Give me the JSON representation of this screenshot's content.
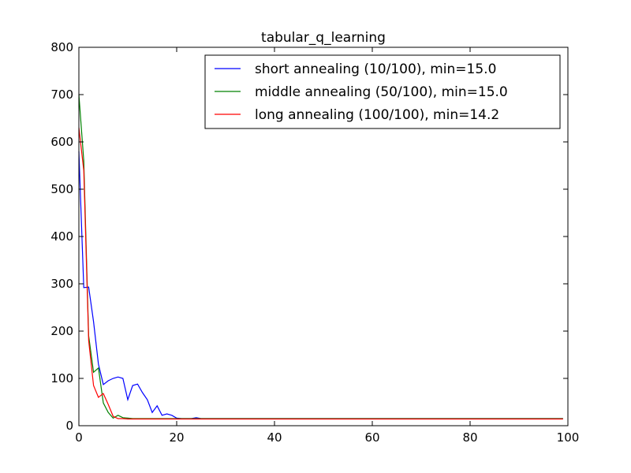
{
  "chart_data": {
    "type": "line",
    "title": "tabular_q_learning",
    "xlabel": "",
    "ylabel": "",
    "xlim": [
      0,
      100
    ],
    "ylim": [
      0,
      800
    ],
    "xticks": [
      0,
      20,
      40,
      60,
      80,
      100
    ],
    "yticks": [
      0,
      100,
      200,
      300,
      400,
      500,
      600,
      700,
      800
    ],
    "grid": false,
    "legend_position": "top-right",
    "series": [
      {
        "name": "short annealing (10/100), min=15.0",
        "color": "#0000ff",
        "points": [
          [
            0,
            580
          ],
          [
            1,
            292
          ],
          [
            2,
            293
          ],
          [
            3,
            220
          ],
          [
            4,
            130
          ],
          [
            5,
            87
          ],
          [
            6,
            95
          ],
          [
            7,
            100
          ],
          [
            8,
            103
          ],
          [
            9,
            100
          ],
          [
            10,
            55
          ],
          [
            11,
            85
          ],
          [
            12,
            88
          ],
          [
            13,
            70
          ],
          [
            14,
            55
          ],
          [
            15,
            28
          ],
          [
            16,
            42
          ],
          [
            17,
            22
          ],
          [
            18,
            25
          ],
          [
            19,
            22
          ],
          [
            20,
            16
          ],
          [
            21,
            15
          ],
          [
            22,
            15
          ],
          [
            23,
            15
          ],
          [
            24,
            17
          ],
          [
            25,
            15
          ],
          [
            30,
            15
          ],
          [
            40,
            15
          ],
          [
            50,
            15
          ],
          [
            60,
            15
          ],
          [
            70,
            15
          ],
          [
            80,
            15
          ],
          [
            90,
            15
          ],
          [
            99,
            15
          ]
        ]
      },
      {
        "name": "middle annealing (50/100), min=15.0",
        "color": "#008000",
        "points": [
          [
            0,
            700
          ],
          [
            1,
            560
          ],
          [
            2,
            190
          ],
          [
            3,
            113
          ],
          [
            4,
            122
          ],
          [
            5,
            48
          ],
          [
            6,
            28
          ],
          [
            7,
            16
          ],
          [
            8,
            22
          ],
          [
            9,
            17
          ],
          [
            10,
            16
          ],
          [
            11,
            15
          ],
          [
            12,
            15
          ],
          [
            15,
            15
          ],
          [
            20,
            15
          ],
          [
            30,
            15
          ],
          [
            40,
            15
          ],
          [
            50,
            15
          ],
          [
            60,
            15
          ],
          [
            70,
            15
          ],
          [
            80,
            15
          ],
          [
            90,
            15
          ],
          [
            99,
            15
          ]
        ]
      },
      {
        "name": "long annealing (100/100), min=14.2",
        "color": "#ff0000",
        "points": [
          [
            0,
            630
          ],
          [
            1,
            540
          ],
          [
            2,
            180
          ],
          [
            3,
            85
          ],
          [
            4,
            60
          ],
          [
            5,
            68
          ],
          [
            6,
            45
          ],
          [
            7,
            20
          ],
          [
            8,
            15
          ],
          [
            9,
            15
          ],
          [
            10,
            14.2
          ],
          [
            15,
            14.2
          ],
          [
            20,
            14.2
          ],
          [
            30,
            14.2
          ],
          [
            40,
            14.2
          ],
          [
            50,
            14.2
          ],
          [
            60,
            14.2
          ],
          [
            70,
            14.2
          ],
          [
            80,
            14.2
          ],
          [
            90,
            14.2
          ],
          [
            99,
            14.2
          ]
        ]
      }
    ]
  }
}
